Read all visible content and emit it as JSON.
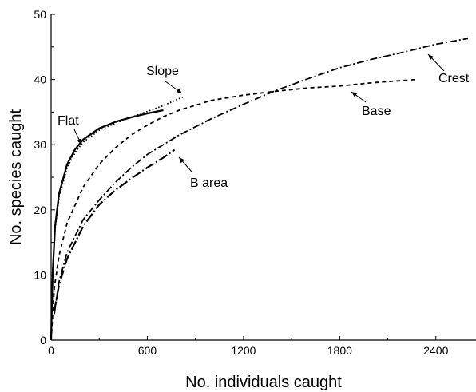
{
  "chart_data": {
    "type": "line",
    "title": "",
    "xlabel": "No. individuals caught",
    "ylabel": "No. species caught",
    "xlim": [
      0,
      2650
    ],
    "ylim": [
      0,
      50
    ],
    "xticks": [
      0,
      600,
      1200,
      1800,
      2400
    ],
    "yticks": [
      0,
      10,
      20,
      30,
      40,
      50
    ],
    "grid": false,
    "series": [
      {
        "name": "Flat",
        "style": "solid",
        "x": [
          0,
          10,
          25,
          50,
          100,
          150,
          200,
          300,
          400,
          500,
          600,
          700
        ],
        "y": [
          0,
          10.5,
          17.5,
          22.5,
          27,
          29.3,
          30.8,
          32.5,
          33.5,
          34.2,
          34.8,
          35.3
        ]
      },
      {
        "name": "Slope",
        "style": "dotted",
        "x": [
          0,
          10,
          25,
          50,
          100,
          150,
          200,
          300,
          400,
          500,
          600,
          700,
          820
        ],
        "y": [
          0,
          10,
          17,
          22,
          26.5,
          28.8,
          30.4,
          32.2,
          33.3,
          34.2,
          35.1,
          36,
          37.3
        ]
      },
      {
        "name": "Base",
        "style": "dashed",
        "x": [
          0,
          20,
          50,
          100,
          200,
          300,
          400,
          500,
          600,
          700,
          800,
          1000,
          1200,
          1400,
          1600,
          1800,
          2000,
          2280
        ],
        "y": [
          0,
          8,
          13,
          18,
          23.5,
          27,
          29.5,
          31.5,
          33,
          34.3,
          35.3,
          36.8,
          37.6,
          38.2,
          38.7,
          39,
          39.5,
          40
        ]
      },
      {
        "name": "Crest",
        "style": "dash-dot",
        "x": [
          20,
          50,
          100,
          200,
          300,
          400,
          500,
          600,
          800,
          1000,
          1200,
          1400,
          1600,
          1800,
          2000,
          2200,
          2400,
          2600
        ],
        "y": [
          4,
          9,
          13.5,
          18.5,
          21.5,
          24.2,
          26.5,
          28.5,
          31.5,
          34,
          36.2,
          38.3,
          40.1,
          41.8,
          43.1,
          44.2,
          45.4,
          46.3
        ]
      },
      {
        "name": "B area",
        "style": "long-dash-dot",
        "x": [
          20,
          50,
          100,
          200,
          300,
          400,
          500,
          600,
          700,
          770
        ],
        "y": [
          4.5,
          8.5,
          12.5,
          17.5,
          20.8,
          23,
          24.8,
          26.5,
          28,
          29.2
        ]
      }
    ],
    "annotations": [
      {
        "label": "Slope",
        "target_series": "Slope"
      },
      {
        "label": "Flat",
        "target_series": "Flat"
      },
      {
        "label": "Base",
        "target_series": "Base"
      },
      {
        "label": "Crest",
        "target_series": "Crest"
      },
      {
        "label": "B area",
        "target_series": "B area"
      }
    ]
  }
}
